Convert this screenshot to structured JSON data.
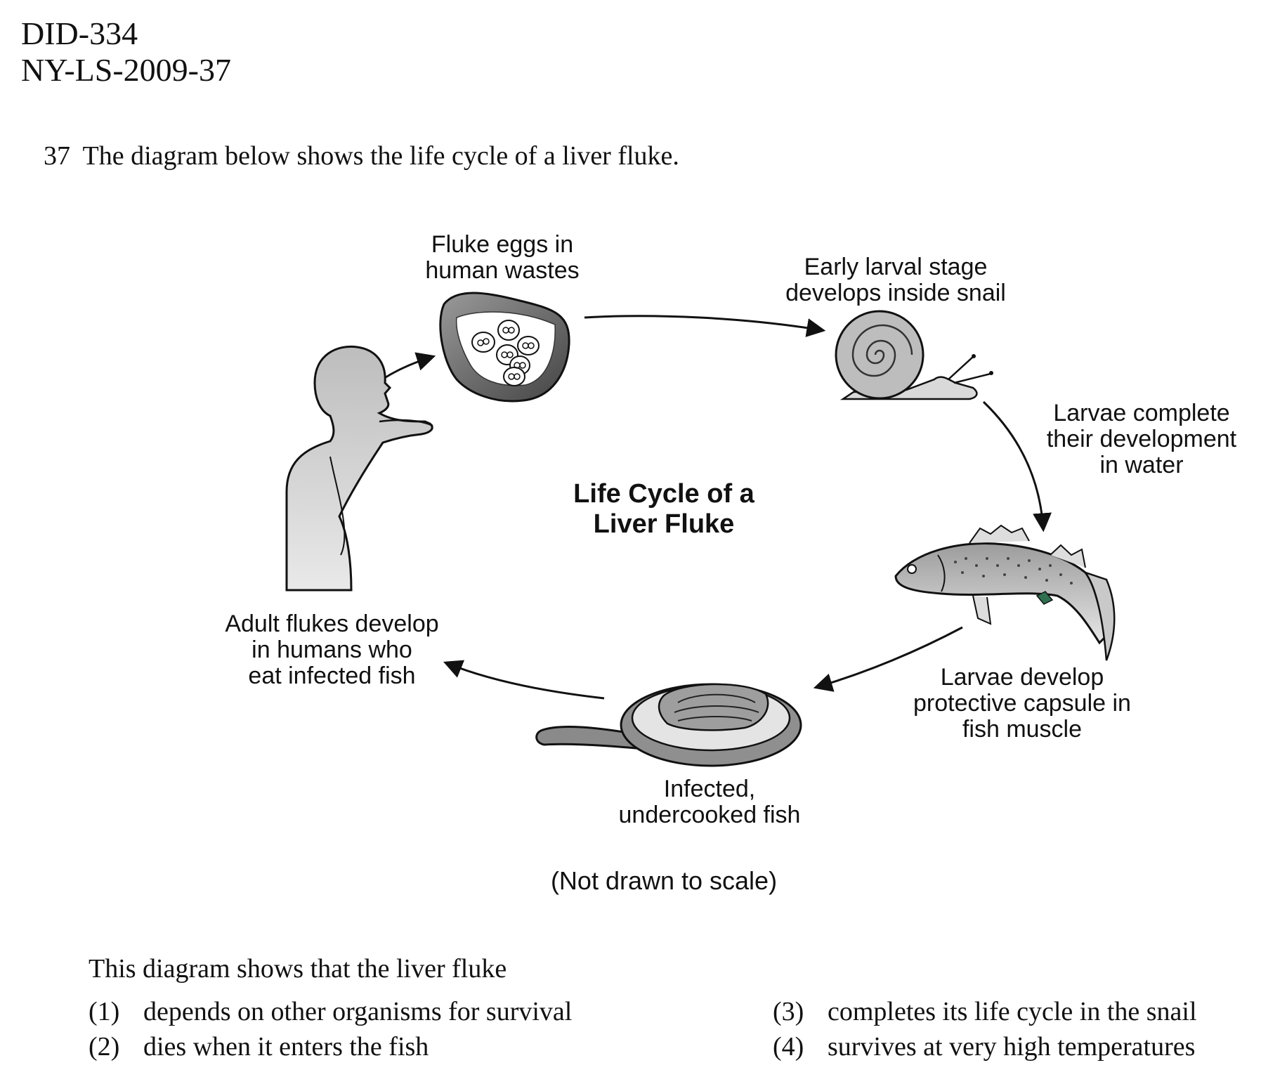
{
  "header": {
    "line1": "DID-334",
    "line2": "NY-LS-2009-37"
  },
  "question": {
    "number": "37",
    "stem": "The diagram below shows the life cycle of a liver fluke."
  },
  "diagram": {
    "title_line1": "Life Cycle of a",
    "title_line2": "Liver Fluke",
    "stages": [
      {
        "line1": "Fluke eggs in",
        "line2": "human wastes"
      },
      {
        "line1": "Early larval stage",
        "line2": "develops inside snail"
      },
      {
        "line1": "Larvae complete",
        "line2": "their development",
        "line3": "in water"
      },
      {
        "line1": "Larvae develop",
        "line2": "protective capsule in",
        "line3": "fish muscle"
      },
      {
        "line1": "Infected,",
        "line2": "undercooked fish"
      },
      {
        "line1": "Adult flukes develop",
        "line2": "in humans who",
        "line3": "eat infected fish"
      }
    ],
    "note": "(Not drawn to scale)"
  },
  "prompt": "This diagram shows that the liver fluke",
  "choices": [
    {
      "num": "(1)",
      "text": "depends on other organisms for survival"
    },
    {
      "num": "(2)",
      "text": "dies when it enters the fish"
    },
    {
      "num": "(3)",
      "text": "completes its life cycle in the snail"
    },
    {
      "num": "(4)",
      "text": "survives at very high temperatures"
    }
  ],
  "colors": {
    "ink": "#111111",
    "shade": "#777777",
    "light_shade": "#cfcfcf"
  }
}
